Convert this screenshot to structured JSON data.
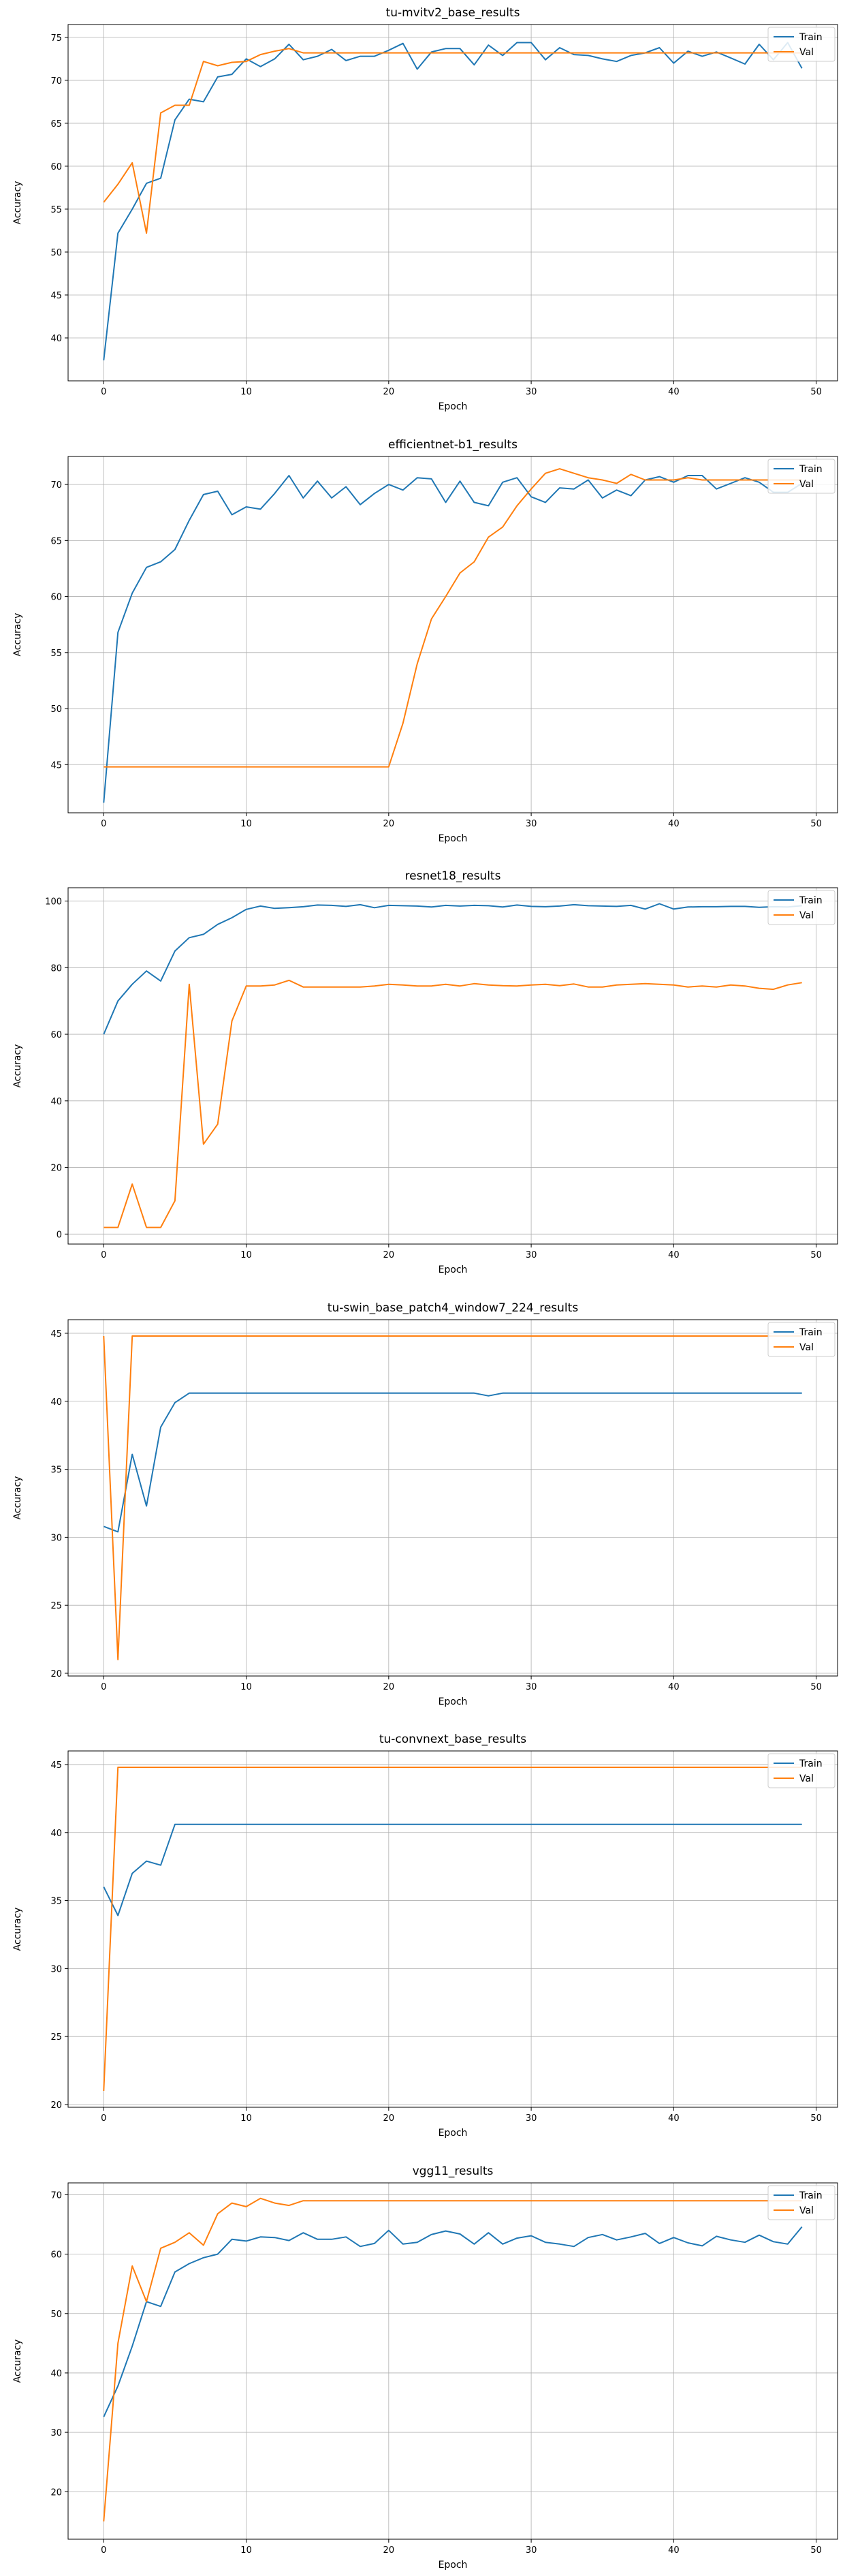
{
  "chart_data": [
    {
      "type": "line",
      "title": "tu-mvitv2_base_results",
      "xlabel": "Epoch",
      "ylabel": "Accuracy",
      "xlim": [
        -2.5,
        51.5
      ],
      "ylim": [
        35.0,
        76.5
      ],
      "xticks": [
        0,
        10,
        20,
        30,
        40,
        50
      ],
      "yticks": [
        40,
        45,
        50,
        55,
        60,
        65,
        70,
        75
      ],
      "grid": true,
      "legend": "top-right",
      "x": [
        0,
        1,
        2,
        3,
        4,
        5,
        6,
        7,
        8,
        9,
        10,
        11,
        12,
        13,
        14,
        15,
        16,
        17,
        18,
        19,
        20,
        21,
        22,
        23,
        24,
        25,
        26,
        27,
        28,
        29,
        30,
        31,
        32,
        33,
        34,
        35,
        36,
        37,
        38,
        39,
        40,
        41,
        42,
        43,
        44,
        45,
        46,
        47,
        48,
        49
      ],
      "series": [
        {
          "name": "Train",
          "color": "#1f77b4",
          "values": [
            37.4,
            52.2,
            55.0,
            58.0,
            58.6,
            65.4,
            67.8,
            67.5,
            70.4,
            70.7,
            72.5,
            71.6,
            72.5,
            74.2,
            72.4,
            72.8,
            73.6,
            72.3,
            72.8,
            72.8,
            73.5,
            74.3,
            71.3,
            73.3,
            73.7,
            73.7,
            71.8,
            74.1,
            72.9,
            74.4,
            74.4,
            72.4,
            73.8,
            73.0,
            72.9,
            72.5,
            72.2,
            72.9,
            73.2,
            73.8,
            72.0,
            73.4,
            72.8,
            73.3,
            72.6,
            71.9,
            74.2,
            72.4,
            74.4,
            71.4
          ]
        },
        {
          "name": "Val",
          "color": "#ff7f0e",
          "values": [
            55.8,
            57.9,
            60.4,
            52.2,
            66.2,
            67.1,
            67.1,
            72.2,
            71.7,
            72.1,
            72.2,
            73.0,
            73.4,
            73.7,
            73.2,
            73.2,
            73.2,
            73.2,
            73.2,
            73.2,
            73.2,
            73.2,
            73.2,
            73.2,
            73.2,
            73.2,
            73.2,
            73.2,
            73.2,
            73.2,
            73.2,
            73.2,
            73.2,
            73.2,
            73.2,
            73.2,
            73.2,
            73.2,
            73.2,
            73.2,
            73.2,
            73.2,
            73.2,
            73.2,
            73.2,
            73.2,
            73.2,
            73.2,
            73.2,
            73.2
          ]
        }
      ]
    },
    {
      "type": "line",
      "title": "efficientnet-b1_results",
      "xlabel": "Epoch",
      "ylabel": "Accuracy",
      "xlim": [
        -2.5,
        51.5
      ],
      "ylim": [
        40.7,
        72.5
      ],
      "xticks": [
        0,
        10,
        20,
        30,
        40,
        50
      ],
      "yticks": [
        45,
        50,
        55,
        60,
        65,
        70
      ],
      "grid": true,
      "legend": "top-right",
      "x": [
        0,
        1,
        2,
        3,
        4,
        5,
        6,
        7,
        8,
        9,
        10,
        11,
        12,
        13,
        14,
        15,
        16,
        17,
        18,
        19,
        20,
        21,
        22,
        23,
        24,
        25,
        26,
        27,
        28,
        29,
        30,
        31,
        32,
        33,
        34,
        35,
        36,
        37,
        38,
        39,
        40,
        41,
        42,
        43,
        44,
        45,
        46,
        47,
        48,
        49
      ],
      "series": [
        {
          "name": "Train",
          "color": "#1f77b4",
          "values": [
            41.6,
            56.8,
            60.3,
            62.6,
            63.1,
            64.2,
            66.8,
            69.1,
            69.4,
            67.3,
            68.0,
            67.8,
            69.2,
            70.8,
            68.8,
            70.3,
            68.8,
            69.8,
            68.2,
            69.2,
            70.0,
            69.5,
            70.6,
            70.5,
            68.4,
            70.3,
            68.4,
            68.1,
            70.2,
            70.6,
            68.9,
            68.4,
            69.7,
            69.6,
            70.4,
            68.8,
            69.5,
            69.0,
            70.4,
            70.7,
            70.2,
            70.8,
            70.8,
            69.6,
            70.1,
            70.6,
            70.2,
            69.3,
            69.3,
            70.1
          ]
        },
        {
          "name": "Val",
          "color": "#ff7f0e",
          "values": [
            44.8,
            44.8,
            44.8,
            44.8,
            44.8,
            44.8,
            44.8,
            44.8,
            44.8,
            44.8,
            44.8,
            44.8,
            44.8,
            44.8,
            44.8,
            44.8,
            44.8,
            44.8,
            44.8,
            44.8,
            44.8,
            48.7,
            54.0,
            58.0,
            60.0,
            62.1,
            63.1,
            65.3,
            66.2,
            68.1,
            69.6,
            71.0,
            71.4,
            71.0,
            70.6,
            70.4,
            70.1,
            70.9,
            70.4,
            70.4,
            70.4,
            70.6,
            70.4,
            70.4,
            70.4,
            70.4,
            70.4,
            70.4,
            70.4,
            70.4
          ]
        }
      ]
    },
    {
      "type": "line",
      "title": "resnet18_results",
      "xlabel": "Epoch",
      "ylabel": "Accuracy",
      "xlim": [
        -2.5,
        51.5
      ],
      "ylim": [
        -3,
        104
      ],
      "xticks": [
        0,
        10,
        20,
        30,
        40,
        50
      ],
      "yticks": [
        0,
        20,
        40,
        60,
        80,
        100
      ],
      "grid": true,
      "legend": "top-right",
      "x": [
        0,
        1,
        2,
        3,
        4,
        5,
        6,
        7,
        8,
        9,
        10,
        11,
        12,
        13,
        14,
        15,
        16,
        17,
        18,
        19,
        20,
        21,
        22,
        23,
        24,
        25,
        26,
        27,
        28,
        29,
        30,
        31,
        32,
        33,
        34,
        35,
        36,
        37,
        38,
        39,
        40,
        41,
        42,
        43,
        44,
        45,
        46,
        47,
        48,
        49
      ],
      "series": [
        {
          "name": "Train",
          "color": "#1f77b4",
          "values": [
            60.0,
            70.0,
            75.0,
            79.0,
            76.0,
            85.0,
            89.0,
            90.0,
            93.0,
            95.0,
            97.5,
            98.5,
            97.8,
            98.0,
            98.3,
            98.8,
            98.7,
            98.4,
            98.9,
            98.0,
            98.7,
            98.6,
            98.5,
            98.2,
            98.7,
            98.5,
            98.7,
            98.6,
            98.2,
            98.8,
            98.4,
            98.3,
            98.5,
            98.9,
            98.6,
            98.5,
            98.4,
            98.7,
            97.6,
            99.2,
            97.6,
            98.2,
            98.3,
            98.3,
            98.4,
            98.4,
            98.1,
            98.3,
            98.2,
            98.6
          ]
        },
        {
          "name": "Val",
          "color": "#ff7f0e",
          "values": [
            2.0,
            2.0,
            15.0,
            2.0,
            2.0,
            10.0,
            75.0,
            27.0,
            33.0,
            64.0,
            74.5,
            74.5,
            74.8,
            76.2,
            74.2,
            74.2,
            74.2,
            74.2,
            74.2,
            74.5,
            75.0,
            74.8,
            74.5,
            74.5,
            75.0,
            74.5,
            75.2,
            74.8,
            74.6,
            74.5,
            74.8,
            75.0,
            74.6,
            75.1,
            74.2,
            74.2,
            74.8,
            75.0,
            75.2,
            75.0,
            74.8,
            74.2,
            74.5,
            74.2,
            74.8,
            74.5,
            73.8,
            73.5,
            74.8,
            75.5
          ]
        }
      ]
    },
    {
      "type": "line",
      "title": "tu-swin_base_patch4_window7_224_results",
      "xlabel": "Epoch",
      "ylabel": "Accuracy",
      "xlim": [
        -2.5,
        51.5
      ],
      "ylim": [
        19.8,
        46.0
      ],
      "xticks": [
        0,
        10,
        20,
        30,
        40,
        50
      ],
      "yticks": [
        20,
        25,
        30,
        35,
        40,
        45
      ],
      "grid": true,
      "legend": "top-right",
      "x": [
        0,
        1,
        2,
        3,
        4,
        5,
        6,
        7,
        8,
        9,
        10,
        11,
        12,
        13,
        14,
        15,
        16,
        17,
        18,
        19,
        20,
        21,
        22,
        23,
        24,
        25,
        26,
        27,
        28,
        29,
        30,
        31,
        32,
        33,
        34,
        35,
        36,
        37,
        38,
        39,
        40,
        41,
        42,
        43,
        44,
        45,
        46,
        47,
        48,
        49
      ],
      "series": [
        {
          "name": "Train",
          "color": "#1f77b4",
          "values": [
            30.8,
            30.4,
            36.1,
            32.3,
            38.1,
            39.9,
            40.6,
            40.6,
            40.6,
            40.6,
            40.6,
            40.6,
            40.6,
            40.6,
            40.6,
            40.6,
            40.6,
            40.6,
            40.6,
            40.6,
            40.6,
            40.6,
            40.6,
            40.6,
            40.6,
            40.6,
            40.6,
            40.4,
            40.6,
            40.6,
            40.6,
            40.6,
            40.6,
            40.6,
            40.6,
            40.6,
            40.6,
            40.6,
            40.6,
            40.6,
            40.6,
            40.6,
            40.6,
            40.6,
            40.6,
            40.6,
            40.6,
            40.6,
            40.6,
            40.6
          ]
        },
        {
          "name": "Val",
          "color": "#ff7f0e",
          "values": [
            44.8,
            21.0,
            44.8,
            44.8,
            44.8,
            44.8,
            44.8,
            44.8,
            44.8,
            44.8,
            44.8,
            44.8,
            44.8,
            44.8,
            44.8,
            44.8,
            44.8,
            44.8,
            44.8,
            44.8,
            44.8,
            44.8,
            44.8,
            44.8,
            44.8,
            44.8,
            44.8,
            44.8,
            44.8,
            44.8,
            44.8,
            44.8,
            44.8,
            44.8,
            44.8,
            44.8,
            44.8,
            44.8,
            44.8,
            44.8,
            44.8,
            44.8,
            44.8,
            44.8,
            44.8,
            44.8,
            44.8,
            44.8,
            44.8,
            44.8
          ]
        }
      ]
    },
    {
      "type": "line",
      "title": "tu-convnext_base_results",
      "xlabel": "Epoch",
      "ylabel": "Accuracy",
      "xlim": [
        -2.5,
        51.5
      ],
      "ylim": [
        19.8,
        46.0
      ],
      "xticks": [
        0,
        10,
        20,
        30,
        40,
        50
      ],
      "yticks": [
        20,
        25,
        30,
        35,
        40,
        45
      ],
      "grid": true,
      "legend": "top-right",
      "x": [
        0,
        1,
        2,
        3,
        4,
        5,
        6,
        7,
        8,
        9,
        10,
        11,
        12,
        13,
        14,
        15,
        16,
        17,
        18,
        19,
        20,
        21,
        22,
        23,
        24,
        25,
        26,
        27,
        28,
        29,
        30,
        31,
        32,
        33,
        34,
        35,
        36,
        37,
        38,
        39,
        40,
        41,
        42,
        43,
        44,
        45,
        46,
        47,
        48,
        49
      ],
      "series": [
        {
          "name": "Train",
          "color": "#1f77b4",
          "values": [
            36.0,
            33.9,
            37.0,
            37.9,
            37.6,
            40.6,
            40.6,
            40.6,
            40.6,
            40.6,
            40.6,
            40.6,
            40.6,
            40.6,
            40.6,
            40.6,
            40.6,
            40.6,
            40.6,
            40.6,
            40.6,
            40.6,
            40.6,
            40.6,
            40.6,
            40.6,
            40.6,
            40.6,
            40.6,
            40.6,
            40.6,
            40.6,
            40.6,
            40.6,
            40.6,
            40.6,
            40.6,
            40.6,
            40.6,
            40.6,
            40.6,
            40.6,
            40.6,
            40.6,
            40.6,
            40.6,
            40.6,
            40.6,
            40.6,
            40.6
          ]
        },
        {
          "name": "Val",
          "color": "#ff7f0e",
          "values": [
            21.0,
            44.8,
            44.8,
            44.8,
            44.8,
            44.8,
            44.8,
            44.8,
            44.8,
            44.8,
            44.8,
            44.8,
            44.8,
            44.8,
            44.8,
            44.8,
            44.8,
            44.8,
            44.8,
            44.8,
            44.8,
            44.8,
            44.8,
            44.8,
            44.8,
            44.8,
            44.8,
            44.8,
            44.8,
            44.8,
            44.8,
            44.8,
            44.8,
            44.8,
            44.8,
            44.8,
            44.8,
            44.8,
            44.8,
            44.8,
            44.8,
            44.8,
            44.8,
            44.8,
            44.8,
            44.8,
            44.8,
            44.8,
            44.8,
            44.8
          ]
        }
      ]
    },
    {
      "type": "line",
      "title": "vgg11_results",
      "xlabel": "Epoch",
      "ylabel": "Accuracy",
      "xlim": [
        -2.5,
        51.5
      ],
      "ylim": [
        12.0,
        72.0
      ],
      "xticks": [
        0,
        10,
        20,
        30,
        40,
        50
      ],
      "yticks": [
        20,
        30,
        40,
        50,
        60,
        70
      ],
      "grid": true,
      "legend": "top-right",
      "x": [
        0,
        1,
        2,
        3,
        4,
        5,
        6,
        7,
        8,
        9,
        10,
        11,
        12,
        13,
        14,
        15,
        16,
        17,
        18,
        19,
        20,
        21,
        22,
        23,
        24,
        25,
        26,
        27,
        28,
        29,
        30,
        31,
        32,
        33,
        34,
        35,
        36,
        37,
        38,
        39,
        40,
        41,
        42,
        43,
        44,
        45,
        46,
        47,
        48,
        49
      ],
      "series": [
        {
          "name": "Train",
          "color": "#1f77b4",
          "values": [
            32.6,
            37.8,
            44.5,
            52.0,
            51.2,
            57.0,
            58.4,
            59.4,
            60.0,
            62.5,
            62.2,
            62.9,
            62.8,
            62.3,
            63.6,
            62.5,
            62.5,
            62.9,
            61.3,
            61.8,
            64.0,
            61.7,
            62.0,
            63.3,
            63.9,
            63.4,
            61.7,
            63.6,
            61.7,
            62.7,
            63.1,
            62.0,
            61.7,
            61.3,
            62.8,
            63.3,
            62.4,
            62.9,
            63.5,
            61.8,
            62.8,
            61.9,
            61.4,
            63.0,
            62.4,
            62.0,
            63.2,
            62.1,
            61.7,
            64.6
          ]
        },
        {
          "name": "Val",
          "color": "#ff7f0e",
          "values": [
            15.0,
            45.0,
            58.0,
            52.0,
            61.0,
            62.0,
            63.6,
            61.5,
            66.8,
            68.6,
            68.0,
            69.4,
            68.6,
            68.2,
            69.0,
            69.0,
            69.0,
            69.0,
            69.0,
            69.0,
            69.0,
            69.0,
            69.0,
            69.0,
            69.0,
            69.0,
            69.0,
            69.0,
            69.0,
            69.0,
            69.0,
            69.0,
            69.0,
            69.0,
            69.0,
            69.0,
            69.0,
            69.0,
            69.0,
            69.0,
            69.0,
            69.0,
            69.0,
            69.0,
            69.0,
            69.0,
            69.0,
            69.0,
            69.0,
            69.0
          ]
        }
      ]
    }
  ]
}
